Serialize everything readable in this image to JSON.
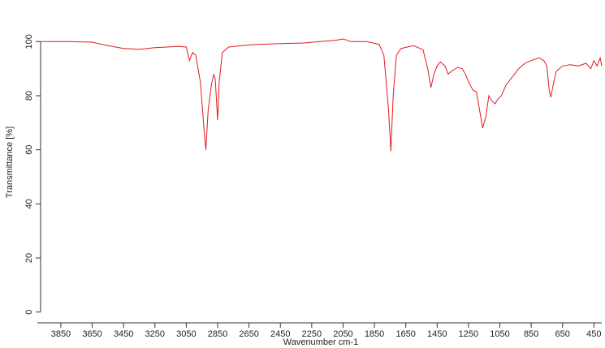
{
  "chart_data": {
    "type": "line",
    "xlabel": "Wavenumber cm-1",
    "ylabel": "Transmittance [%]",
    "x": [
      4000,
      3800,
      3650,
      3550,
      3450,
      3350,
      3250,
      3100,
      3050,
      3030,
      3010,
      2990,
      2960,
      2940,
      2925,
      2910,
      2890,
      2875,
      2865,
      2850,
      2840,
      2820,
      2780,
      2700,
      2600,
      2450,
      2300,
      2200,
      2100,
      2050,
      2000,
      1900,
      1820,
      1790,
      1760,
      1745,
      1730,
      1710,
      1680,
      1600,
      1540,
      1510,
      1490,
      1470,
      1450,
      1430,
      1400,
      1380,
      1360,
      1320,
      1290,
      1270,
      1240,
      1220,
      1200,
      1180,
      1160,
      1140,
      1120,
      1100,
      1080,
      1060,
      1040,
      1010,
      970,
      930,
      890,
      850,
      800,
      770,
      750,
      735,
      725,
      710,
      690,
      650,
      600,
      550,
      500,
      470,
      450,
      430,
      410,
      400
    ],
    "series": [
      {
        "color": "#e31a1c",
        "values": [
          100,
          100,
          99.8,
          98.5,
          97.5,
          97.2,
          97.8,
          98.2,
          98,
          93,
          96,
          95,
          85,
          70,
          60,
          75,
          84,
          88,
          86,
          71,
          85,
          96,
          98,
          98.5,
          99,
          99.3,
          99.5,
          100,
          100.5,
          101,
          100,
          100,
          99,
          95,
          75,
          59.5,
          80,
          95,
          97.5,
          98.5,
          97,
          90,
          83,
          88,
          91,
          92.5,
          91,
          88,
          89,
          90.5,
          90,
          88,
          84,
          82,
          81.5,
          75,
          68,
          72,
          80,
          78,
          77,
          79,
          80,
          84,
          87,
          90,
          92,
          93,
          94,
          93,
          91,
          82,
          79.5,
          84,
          89,
          91,
          91.5,
          91,
          92,
          90,
          93,
          91,
          94,
          91
        ]
      }
    ],
    "xlim": [
      4000,
      400
    ],
    "ylim": [
      -4,
      110
    ],
    "xticks": [
      3850,
      3650,
      3450,
      3250,
      3050,
      2850,
      2650,
      2450,
      2250,
      2050,
      1850,
      1650,
      1450,
      1250,
      1050,
      850,
      650,
      450
    ],
    "yticks": [
      0,
      20,
      40,
      60,
      80,
      100
    ]
  }
}
